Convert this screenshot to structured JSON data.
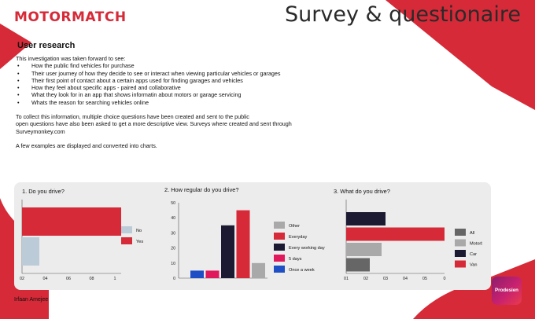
{
  "header": {
    "logo": "MOTORMATCH",
    "title": "Survey & questionaire"
  },
  "section_title": "User research",
  "intro": {
    "lead": "This investigation was taken forward to see:",
    "bullets": [
      "How the public find vehicles for purchase",
      "Their user journey of how they decide to see or interact when viewing particular vehicles or garages",
      "Their first point of contact about a certain apps used for finding garages and vehicles",
      "How they feel about specific apps - paired and collaborative",
      "What they look for in an app that shows informatin about motors or garage servicing",
      "Whats the reason for searching vehicles online"
    ],
    "para_lines": [
      "To collect this information, multiple choice questions have been created and sent to the public",
      "open questions have also been asked to get a more descriptive view. Surveys where created and sent through",
      "Surveymonkey.com"
    ],
    "closing": "A few examples are displayed and converted into charts."
  },
  "footer_author": "Irfaan Amejee",
  "badge": "Prodesien",
  "colors": {
    "brand": "#d62a38",
    "dark": "#1c1a33",
    "blue": "#1f4fc4",
    "pink": "#e0195c",
    "gray": "#a9a9a9",
    "lightblue": "#bccbd8",
    "darkgray": "#666666"
  },
  "chart_data": [
    {
      "type": "bar",
      "orientation": "horizontal",
      "title": "1. Do you drive?",
      "categories": [
        "Yes",
        "No"
      ],
      "values": [
        1.0,
        0.2
      ],
      "colors": [
        "#d62a38",
        "#bccbd8"
      ],
      "xlim": [
        0.2,
        1.0
      ],
      "xticks": [
        "02",
        "04",
        "06",
        "08",
        "1"
      ],
      "legend": [
        {
          "label": "No",
          "color": "#bccbd8"
        },
        {
          "label": "Yes",
          "color": "#d62a38"
        }
      ],
      "legend_position": "right"
    },
    {
      "type": "bar",
      "title": "2. How regular do you drive?",
      "categories": [
        "Once a week",
        "5 days",
        "Every working day",
        "Everyday",
        "Other"
      ],
      "values": [
        5,
        5,
        35,
        45,
        10
      ],
      "colors": [
        "#1f4fc4",
        "#e0195c",
        "#1c1a33",
        "#d62a38",
        "#a9a9a9"
      ],
      "ylim": [
        0,
        50
      ],
      "yticks": [
        "0",
        "10",
        "20",
        "30",
        "40",
        "50"
      ],
      "legend": [
        {
          "label": "Other",
          "color": "#a9a9a9"
        },
        {
          "label": "Everyday",
          "color": "#d62a38"
        },
        {
          "label": "Every working day",
          "color": "#1c1a33"
        },
        {
          "label": "5 days",
          "color": "#e0195c"
        },
        {
          "label": "Once a week",
          "color": "#1f4fc4"
        }
      ],
      "legend_position": "right"
    },
    {
      "type": "bar",
      "orientation": "horizontal",
      "title": "3. What do you drive?",
      "categories": [
        "Car",
        "All",
        "Motorbike",
        "Van"
      ],
      "values": [
        0.2,
        0.5,
        0.18,
        0.12
      ],
      "colors": [
        "#1c1a33",
        "#d62a38",
        "#a9a9a9",
        "#666666"
      ],
      "xlim": [
        0,
        0.5
      ],
      "xticks": [
        "01",
        "02",
        "03",
        "04",
        "05",
        "0"
      ],
      "legend": [
        {
          "label": "All",
          "color": "#666666"
        },
        {
          "label": "Motorbike",
          "color": "#a9a9a9"
        },
        {
          "label": "Car",
          "color": "#1c1a33"
        },
        {
          "label": "Van",
          "color": "#d62a38"
        }
      ],
      "legend_position": "right"
    }
  ]
}
